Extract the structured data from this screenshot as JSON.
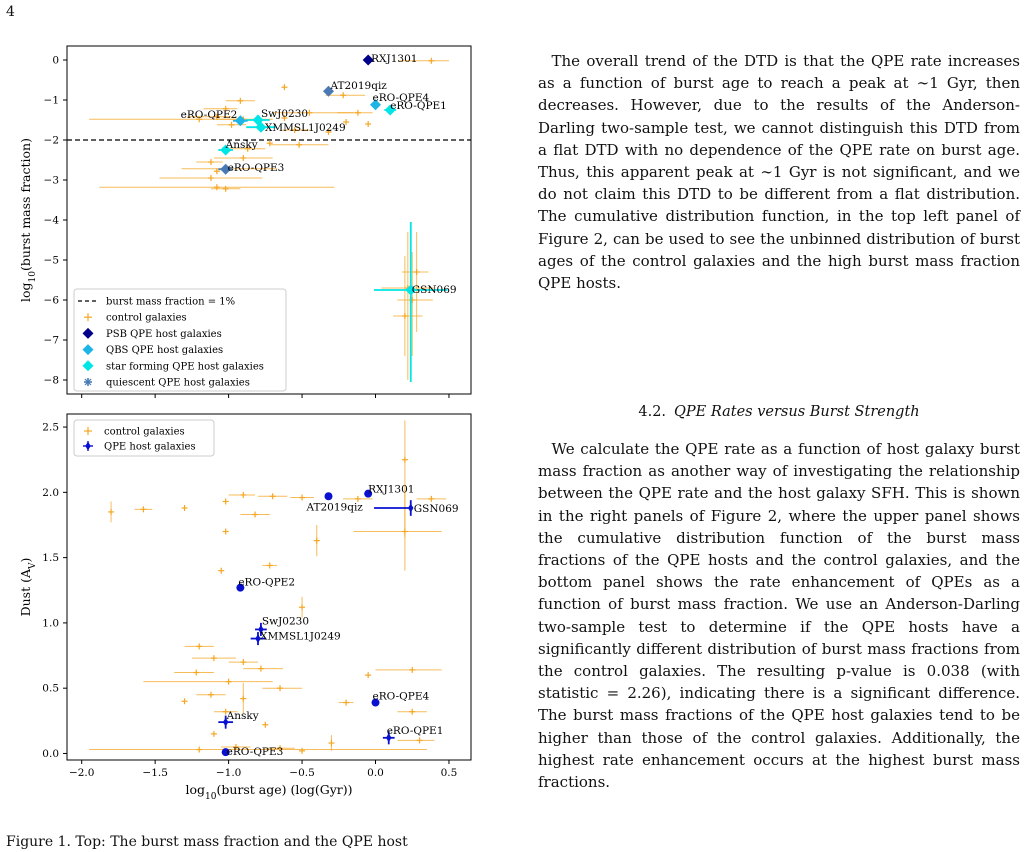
{
  "page_number": "4",
  "text": {
    "para1": "The overall trend of the DTD is that the QPE rate increases as a function of burst age to reach a peak at ∼1 Gyr, then decreases. However, due to the results of the Anderson-Darling two-sample test, we cannot distinguish this DTD from a flat DTD with no dependence of the QPE rate on burst age. Thus, this apparent peak at ∼1 Gyr is not significant, and we do not claim this DTD to be different from a flat distribution. The cumulative distribution function, in the top left panel of Figure 2, can be used to see the unbinned distribution of burst ages of the control galaxies and the high burst mass fraction QPE hosts.",
    "section_number": "4.2.",
    "section_title": "QPE Rates versus Burst Strength",
    "para2": "We calculate the QPE rate as a function of host galaxy burst mass fraction as another way of investigating the relationship between the QPE rate and the host galaxy SFH. This is shown in the right panels of Figure 2, where the upper panel shows the cumulative distribution function of the burst mass fractions of the QPE hosts and the control galaxies, and the bottom panel shows the rate enhancement of QPEs as a function of burst mass fraction. We use an Anderson-Darling two-sample test to determine if the QPE hosts have a significantly different distribution of burst mass fractions from the control galaxies. The resulting p-value is 0.038 (with statistic = 2.26), indicating there is a significant difference. The burst mass fractions of the QPE host galaxies tend to be higher than those of the control galaxies. Additionally, the highest rate enhancement occurs at the highest burst mass fractions.",
    "caption_fragment": "Figure 1.  Top: The burst mass fraction and the QPE host"
  },
  "colors": {
    "control": "#f5a623",
    "psb": "#00008b",
    "qbs": "#1eb4e6",
    "starforming": "#00e5e5",
    "quiescent": "#4a7ab5",
    "host_blue": "#0a10d0"
  },
  "chart_data": [
    {
      "type": "scatter",
      "title": "",
      "xlabel": "log10(burst age) (log(Gyr))",
      "ylabel": "log10(burst mass fraction)",
      "xlim": [
        -2.1,
        0.65
      ],
      "ylim": [
        -8.35,
        0.35
      ],
      "yticks": [
        0,
        -1,
        -2,
        -3,
        -4,
        -5,
        -6,
        -7,
        -8
      ],
      "reference_line": {
        "y": -2,
        "label": "burst mass fraction = 1%"
      },
      "legend": {
        "placement": "lower-left",
        "entries": [
          "burst mass fraction = 1%",
          "control galaxies",
          "PSB QPE host galaxies",
          "QBS QPE host galaxies",
          "star forming QPE host galaxies",
          "quiescent QPE host galaxies"
        ]
      },
      "hosts": [
        {
          "name": "RXJ1301",
          "x": -0.05,
          "y": 0.0,
          "class": "PSB",
          "xerr": [
            0.0,
            0.0
          ],
          "yerr": [
            0.0,
            0.0
          ]
        },
        {
          "name": "AT2019qiz",
          "x": -0.32,
          "y": -0.78,
          "class": "quiescent",
          "xerr": [
            0.03,
            0.03
          ],
          "yerr": [
            0.05,
            0.05
          ]
        },
        {
          "name": "eRO-QPE4",
          "x": 0.0,
          "y": -1.12,
          "class": "QBS",
          "xerr": [
            0.02,
            0.02
          ],
          "yerr": [
            0.05,
            0.05
          ]
        },
        {
          "name": "eRO-QPE1",
          "x": 0.1,
          "y": -1.25,
          "class": "starforming",
          "xerr": [
            0.04,
            0.04
          ],
          "yerr": [
            0.05,
            0.05
          ]
        },
        {
          "name": "SwJ0230",
          "x": -0.8,
          "y": -1.5,
          "class": "starforming",
          "xerr": [
            0.08,
            0.08
          ],
          "yerr": [
            0.1,
            0.1
          ]
        },
        {
          "name": "eRO-QPE2",
          "x": -0.92,
          "y": -1.52,
          "class": "QBS",
          "xerr": [
            0.05,
            0.05
          ],
          "yerr": [
            0.1,
            0.1
          ]
        },
        {
          "name": "XMMSL1J0249",
          "x": -0.78,
          "y": -1.68,
          "class": "starforming",
          "xerr": [
            0.1,
            0.1
          ],
          "yerr": [
            0.12,
            0.12
          ]
        },
        {
          "name": "Ansky",
          "x": -1.02,
          "y": -2.25,
          "class": "starforming",
          "xerr": [
            0.05,
            0.05
          ],
          "yerr": [
            0.1,
            0.1
          ]
        },
        {
          "name": "eRO-QPE3",
          "x": -1.02,
          "y": -2.73,
          "class": "quiescent",
          "xerr": [
            0.05,
            0.05
          ],
          "yerr": [
            0.08,
            0.08
          ]
        },
        {
          "name": "GSN069",
          "x": 0.24,
          "y": -5.75,
          "class": "starforming",
          "xerr": [
            0.25,
            0.25
          ],
          "yerr": [
            2.3,
            1.7
          ]
        }
      ],
      "control_galaxies": [
        {
          "x": 0.38,
          "y": -0.02,
          "xl": 0.22,
          "xh": 0.12
        },
        {
          "x": -0.62,
          "y": -0.68
        },
        {
          "x": -0.22,
          "y": -0.88,
          "xl": 0.12,
          "xh": 0.15
        },
        {
          "x": -0.92,
          "y": -1.02,
          "xl": 0.1,
          "xh": 0.1
        },
        {
          "x": -1.02,
          "y": -1.22,
          "xl": 0.15,
          "xh": 0.08
        },
        {
          "x": -0.45,
          "y": -1.32,
          "xl": 0.25,
          "xh": 0.3
        },
        {
          "x": -0.12,
          "y": -1.32,
          "xl": 0.14,
          "xh": 0.1
        },
        {
          "x": -1.08,
          "y": -1.42,
          "xl": 0.2,
          "xh": 0.1
        },
        {
          "x": -1.2,
          "y": -1.48,
          "xl": 0.75,
          "xh": 0.3
        },
        {
          "x": -0.9,
          "y": -1.48,
          "xl": 0.18,
          "xh": 0.2
        },
        {
          "x": -0.62,
          "y": -1.45
        },
        {
          "x": -0.98,
          "y": -1.62,
          "xl": 0.1,
          "xh": 0.1
        },
        {
          "x": -0.2,
          "y": -1.55
        },
        {
          "x": -0.05,
          "y": -1.6
        },
        {
          "x": -0.55,
          "y": -1.75,
          "xl": 0.08,
          "xh": 0.1
        },
        {
          "x": -0.32,
          "y": -1.8
        },
        {
          "x": -0.52,
          "y": -2.12,
          "xl": 0.2,
          "xh": 0.2
        },
        {
          "x": -0.72,
          "y": -2.08
        },
        {
          "x": -0.87,
          "y": -2.22,
          "xl": 0.12,
          "xh": 0.12
        },
        {
          "x": -0.9,
          "y": -2.45,
          "xl": 0.2,
          "xh": 0.2
        },
        {
          "x": -1.12,
          "y": -2.55,
          "xl": 0.1,
          "xh": 0.08
        },
        {
          "x": -1.02,
          "y": -2.72,
          "xl": 0.3,
          "xh": 0.35
        },
        {
          "x": -1.08,
          "y": -2.78
        },
        {
          "x": -1.12,
          "y": -2.95,
          "xl": 0.35,
          "xh": 0.35
        },
        {
          "x": -1.08,
          "y": -3.18,
          "xl": 0.8,
          "xh": 0.8
        },
        {
          "x": -1.02,
          "y": -3.22,
          "xl": 0.1,
          "xh": 0.1
        },
        {
          "x": 0.22,
          "y": -5.7,
          "xl": 0.18,
          "xh": 0.18,
          "yl": 2.3,
          "yh": 1.4
        },
        {
          "x": 0.25,
          "y": -6.0,
          "xl": 0.1,
          "xh": 0.14,
          "yl": 1.4,
          "yh": 1.2
        },
        {
          "x": 0.2,
          "y": -6.4,
          "xl": 0.08,
          "xh": 0.12,
          "yl": 1.0,
          "yh": 1.5
        },
        {
          "x": 0.28,
          "y": -5.3,
          "xl": 0.1,
          "xh": 0.08,
          "yl": 1.5,
          "yh": 1.0
        }
      ]
    },
    {
      "type": "scatter",
      "title": "",
      "xlabel": "log10(burst age) (log(Gyr))",
      "ylabel": "Dust (AV)",
      "xlim": [
        -2.1,
        0.65
      ],
      "ylim": [
        -0.05,
        2.6
      ],
      "xticks": [
        -2.0,
        -1.5,
        -1.0,
        -0.5,
        0.0,
        0.5
      ],
      "yticks": [
        0.0,
        0.5,
        1.0,
        1.5,
        2.0,
        2.5
      ],
      "legend": {
        "placement": "top-left",
        "entries": [
          "control galaxies",
          "QPE host galaxies"
        ]
      },
      "hosts": [
        {
          "name": "RXJ1301",
          "x": -0.05,
          "y": 1.99,
          "xerr": [
            0,
            0
          ],
          "yerr": [
            0,
            0
          ]
        },
        {
          "name": "AT2019qiz",
          "x": -0.32,
          "y": 1.97,
          "xerr": [
            0,
            0
          ],
          "yerr": [
            0,
            0
          ]
        },
        {
          "name": "GSN069",
          "x": 0.24,
          "y": 1.88,
          "xerr": [
            0.25,
            0.0
          ],
          "yerr": [
            0.06,
            0.06
          ]
        },
        {
          "name": "eRO-QPE2",
          "x": -0.92,
          "y": 1.27,
          "xerr": [
            0,
            0
          ],
          "yerr": [
            0,
            0
          ]
        },
        {
          "name": "SwJ0230",
          "x": -0.78,
          "y": 0.95,
          "xerr": [
            0.04,
            0.04
          ],
          "yerr": [
            0.05,
            0.05
          ]
        },
        {
          "name": "XMMSL1J0249",
          "x": -0.8,
          "y": 0.88,
          "xerr": [
            0.05,
            0.05
          ],
          "yerr": [
            0.05,
            0.05
          ]
        },
        {
          "name": "eRO-QPE4",
          "x": 0.0,
          "y": 0.39,
          "xerr": [
            0,
            0
          ],
          "yerr": [
            0,
            0
          ]
        },
        {
          "name": "Ansky",
          "x": -1.02,
          "y": 0.24,
          "xerr": [
            0.05,
            0.05
          ],
          "yerr": [
            0.05,
            0.05
          ]
        },
        {
          "name": "eRO-QPE1",
          "x": 0.09,
          "y": 0.12,
          "xerr": [
            0.04,
            0.04
          ],
          "yerr": [
            0.05,
            0.05
          ]
        },
        {
          "name": "eRO-QPE3",
          "x": -1.02,
          "y": 0.01,
          "xerr": [
            0,
            0
          ],
          "yerr": [
            0,
            0
          ]
        }
      ],
      "control_galaxies": [
        {
          "x": 0.2,
          "y": 2.25,
          "yl": 0.6,
          "yh": 0.3
        },
        {
          "x": -0.9,
          "y": 1.98,
          "xl": 0.1,
          "xh": 0.08
        },
        {
          "x": -0.7,
          "y": 1.97,
          "xl": 0.1,
          "xh": 0.1
        },
        {
          "x": -0.5,
          "y": 1.96,
          "xl": 0.08,
          "xh": 0.08
        },
        {
          "x": -0.12,
          "y": 1.95,
          "xl": 0.1,
          "xh": 0.1
        },
        {
          "x": 0.38,
          "y": 1.95,
          "xl": 0.1,
          "xh": 0.1
        },
        {
          "x": -1.02,
          "y": 1.93
        },
        {
          "x": -1.8,
          "y": 1.85,
          "yl": 0.08,
          "yh": 0.08
        },
        {
          "x": -0.82,
          "y": 1.83,
          "xl": 0.1,
          "xh": 0.1
        },
        {
          "x": -1.58,
          "y": 1.87,
          "xl": 0.06,
          "xh": 0.06
        },
        {
          "x": -1.3,
          "y": 1.88
        },
        {
          "x": 0.2,
          "y": 1.7,
          "xl": 0.35,
          "xh": 0.25,
          "yl": 0.3,
          "yh": 0.3
        },
        {
          "x": -1.02,
          "y": 1.7
        },
        {
          "x": -0.4,
          "y": 1.63,
          "yl": 0.12,
          "yh": 0.12
        },
        {
          "x": -0.72,
          "y": 1.44,
          "xl": 0.05,
          "xh": 0.05
        },
        {
          "x": -1.05,
          "y": 1.4
        },
        {
          "x": -0.5,
          "y": 1.12,
          "yl": 0.08,
          "yh": 0.08
        },
        {
          "x": -1.2,
          "y": 0.82,
          "xl": 0.1,
          "xh": 0.1
        },
        {
          "x": -1.1,
          "y": 0.73,
          "xl": 0.15,
          "xh": 0.15
        },
        {
          "x": -0.9,
          "y": 0.7,
          "xl": 0.1,
          "xh": 0.1
        },
        {
          "x": -0.78,
          "y": 0.65,
          "xl": 0.12,
          "xh": 0.15
        },
        {
          "x": -1.22,
          "y": 0.62,
          "xl": 0.15,
          "xh": 0.12
        },
        {
          "x": 0.25,
          "y": 0.64,
          "xl": 0.25,
          "xh": 0.2
        },
        {
          "x": -0.05,
          "y": 0.6
        },
        {
          "x": -1.0,
          "y": 0.55,
          "xl": 0.58,
          "xh": 0.3
        },
        {
          "x": -0.65,
          "y": 0.5,
          "xl": 0.12,
          "xh": 0.15
        },
        {
          "x": -1.12,
          "y": 0.45,
          "xl": 0.1,
          "xh": 0.1
        },
        {
          "x": -0.9,
          "y": 0.42,
          "yl": 0.12,
          "yh": 0.12
        },
        {
          "x": -1.3,
          "y": 0.4
        },
        {
          "x": -0.2,
          "y": 0.39,
          "xl": 0.05,
          "xh": 0.05
        },
        {
          "x": 0.25,
          "y": 0.32,
          "xl": 0.1,
          "xh": 0.1
        },
        {
          "x": -1.02,
          "y": 0.32,
          "xl": 0.08,
          "xh": 0.08
        },
        {
          "x": -0.75,
          "y": 0.22
        },
        {
          "x": -0.3,
          "y": 0.08,
          "yl": 0.06,
          "yh": 0.06
        },
        {
          "x": 0.3,
          "y": 0.1,
          "xl": 0.15,
          "xh": 0.1
        },
        {
          "x": -1.2,
          "y": 0.03,
          "xl": 0.75,
          "xh": 1.55
        },
        {
          "x": -0.95,
          "y": 0.05,
          "xl": 0.1,
          "xh": 0.1
        },
        {
          "x": -0.65,
          "y": 0.04,
          "xl": 0.1,
          "xh": 0.1
        },
        {
          "x": -1.1,
          "y": 0.15
        },
        {
          "x": -0.5,
          "y": 0.02
        }
      ]
    }
  ]
}
